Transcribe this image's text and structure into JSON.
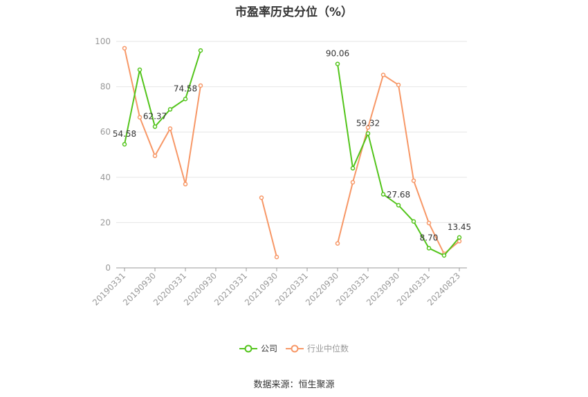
{
  "chart_data": {
    "type": "line",
    "title": "市盈率历史分位（%）",
    "xlabel": "",
    "ylabel": "",
    "ylim": [
      0,
      100
    ],
    "yticks": [
      0,
      20,
      40,
      60,
      80,
      100
    ],
    "grid": true,
    "legend_position": "bottom",
    "x": [
      "20190331",
      "20190630",
      "20190930",
      "20191231",
      "20200331",
      "20200630",
      "20200930",
      "20201231",
      "20210331",
      "20210630",
      "20210930",
      "20211231",
      "20220331",
      "20220630",
      "20220930",
      "20221231",
      "20230331",
      "20230630",
      "20230930",
      "20231231",
      "20240331",
      "20240630",
      "20240823"
    ],
    "x_tick_labels": [
      "20190331",
      "20190930",
      "20200331",
      "20200930",
      "20210331",
      "20210930",
      "20220331",
      "20220930",
      "20230331",
      "20230930",
      "20240331",
      "20240823"
    ],
    "series": [
      {
        "name": "公司",
        "color": "#52c41a",
        "values": [
          54.58,
          87.5,
          62.37,
          70.0,
          74.58,
          96.0,
          null,
          null,
          null,
          null,
          null,
          null,
          null,
          null,
          90.06,
          44.0,
          59.32,
          32.5,
          27.68,
          20.5,
          8.7,
          5.5,
          13.45
        ],
        "labels": {
          "0": "54.58",
          "2": "62.37",
          "4": "74.58",
          "14": "90.06",
          "16": "59.32",
          "18": "27.68",
          "20": "8.70",
          "22": "13.45"
        }
      },
      {
        "name": "行业中位数",
        "color": "#f79766",
        "values": [
          97.0,
          66.5,
          49.5,
          61.5,
          37.0,
          80.5,
          null,
          null,
          null,
          31.0,
          4.8,
          null,
          null,
          null,
          10.8,
          37.8,
          62.0,
          85.2,
          80.8,
          38.5,
          19.8,
          6.2,
          11.8
        ],
        "labels": {}
      }
    ]
  },
  "source": "数据来源：恒生聚源"
}
